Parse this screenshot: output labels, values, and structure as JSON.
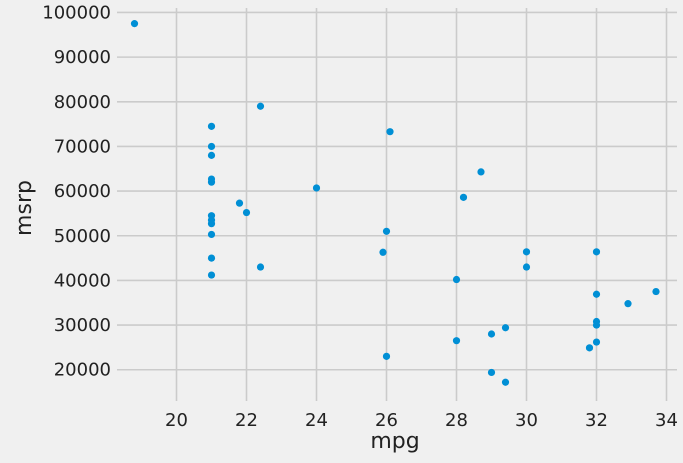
{
  "chart_data": {
    "type": "scatter",
    "title": "",
    "xlabel": "mpg",
    "ylabel": "msrp",
    "xlim": [
      18.3,
      34.3
    ],
    "ylim": [
      13000,
      101000
    ],
    "xticks": [
      20,
      22,
      24,
      26,
      28,
      30,
      32,
      34
    ],
    "yticks": [
      20000,
      30000,
      40000,
      50000,
      60000,
      70000,
      80000,
      90000,
      100000
    ],
    "grid": true,
    "colors": {
      "point": "#008fd5",
      "grid": "#cbcbcb",
      "background": "#f0f0f0"
    },
    "points": [
      {
        "x": 18.8,
        "y": 97500
      },
      {
        "x": 21.0,
        "y": 74500
      },
      {
        "x": 21.0,
        "y": 70000
      },
      {
        "x": 21.0,
        "y": 68000
      },
      {
        "x": 21.0,
        "y": 62700
      },
      {
        "x": 21.0,
        "y": 62000
      },
      {
        "x": 21.0,
        "y": 54500
      },
      {
        "x": 21.0,
        "y": 53500
      },
      {
        "x": 21.0,
        "y": 52700
      },
      {
        "x": 21.0,
        "y": 50300
      },
      {
        "x": 21.0,
        "y": 45000
      },
      {
        "x": 21.0,
        "y": 41200
      },
      {
        "x": 21.8,
        "y": 57300
      },
      {
        "x": 22.0,
        "y": 55200
      },
      {
        "x": 22.4,
        "y": 79000
      },
      {
        "x": 22.4,
        "y": 43000
      },
      {
        "x": 24.0,
        "y": 60700
      },
      {
        "x": 25.9,
        "y": 46300
      },
      {
        "x": 26.0,
        "y": 51000
      },
      {
        "x": 26.0,
        "y": 23000
      },
      {
        "x": 26.1,
        "y": 73300
      },
      {
        "x": 28.0,
        "y": 40200
      },
      {
        "x": 28.0,
        "y": 26500
      },
      {
        "x": 28.2,
        "y": 58600
      },
      {
        "x": 28.7,
        "y": 64300
      },
      {
        "x": 29.0,
        "y": 28000
      },
      {
        "x": 29.0,
        "y": 19400
      },
      {
        "x": 29.4,
        "y": 29400
      },
      {
        "x": 29.4,
        "y": 17200
      },
      {
        "x": 30.0,
        "y": 46400
      },
      {
        "x": 30.0,
        "y": 43000
      },
      {
        "x": 31.8,
        "y": 24900
      },
      {
        "x": 32.0,
        "y": 46400
      },
      {
        "x": 32.0,
        "y": 36900
      },
      {
        "x": 32.0,
        "y": 30800
      },
      {
        "x": 32.0,
        "y": 30000
      },
      {
        "x": 32.0,
        "y": 26200
      },
      {
        "x": 32.9,
        "y": 34800
      },
      {
        "x": 33.7,
        "y": 37500
      }
    ]
  }
}
